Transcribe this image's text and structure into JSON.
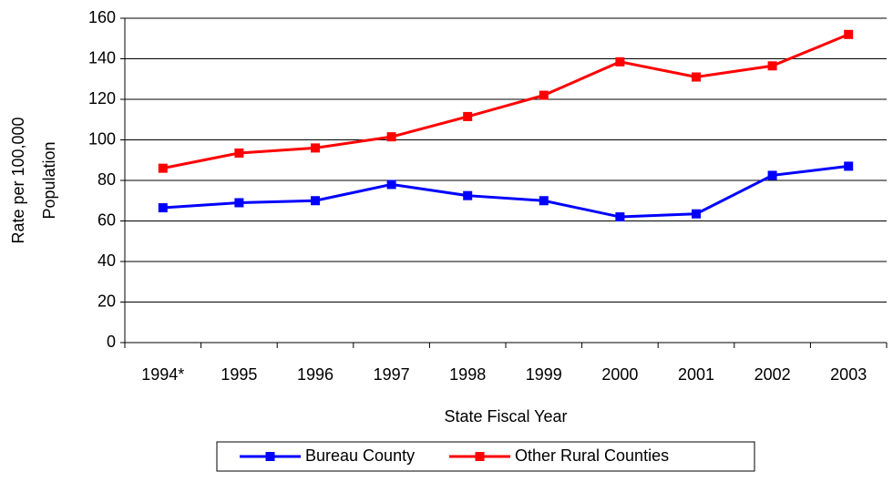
{
  "chart_data": {
    "type": "line",
    "x_label": "State Fiscal Year",
    "y_label": [
      "Rate per 100,000",
      "Population"
    ],
    "categories": [
      "1994*",
      "1995",
      "1996",
      "1997",
      "1998",
      "1999",
      "2000",
      "2001",
      "2002",
      "2003"
    ],
    "series": [
      {
        "name": "Bureau County",
        "color": "#0000ff",
        "values": [
          66.5,
          69,
          70,
          78,
          72.5,
          70,
          62,
          63.5,
          82.5,
          87
        ]
      },
      {
        "name": "Other Rural Counties",
        "color": "#ff0000",
        "values": [
          86,
          93.5,
          96,
          101.5,
          111.5,
          122,
          138.5,
          131,
          136.5,
          152
        ]
      }
    ],
    "ylim": [
      0,
      160
    ],
    "yticks": [
      0,
      20,
      40,
      60,
      80,
      100,
      120,
      140,
      160
    ],
    "grid": true
  }
}
